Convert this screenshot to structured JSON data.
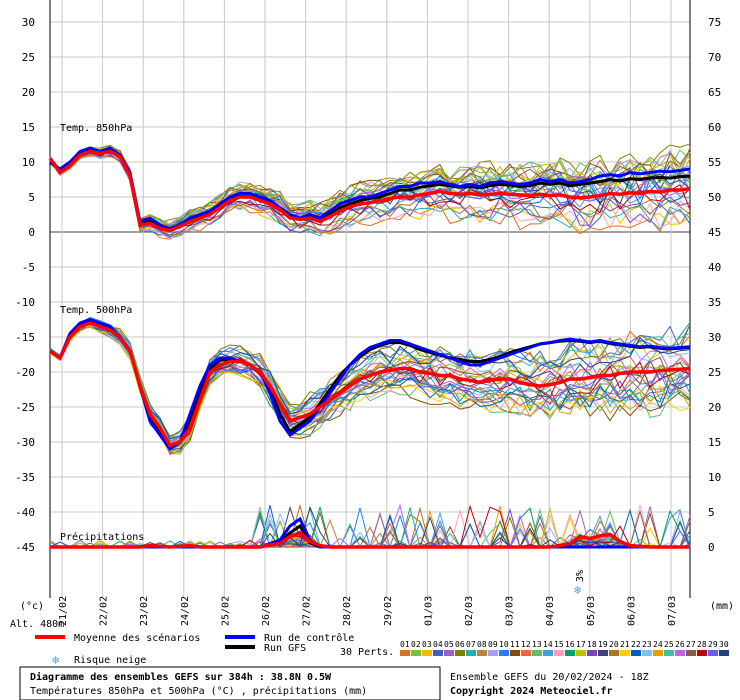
{
  "chart_data": {
    "type": "line",
    "y_left": {
      "min": -50,
      "max": 30,
      "ticks": [
        30,
        25,
        20,
        15,
        10,
        5,
        0,
        -5,
        -10,
        -15,
        -20,
        -25,
        -30,
        -35,
        -40,
        -45
      ],
      "unit": "(°c)"
    },
    "y_right": {
      "ticks": [
        75,
        70,
        65,
        60,
        55,
        50,
        45,
        40,
        35,
        30,
        25,
        20,
        15,
        10,
        5,
        0
      ],
      "unit": "(mm)"
    },
    "x_labels": [
      "21/02",
      "22/02",
      "23/02",
      "24/02",
      "25/02",
      "26/02",
      "27/02",
      "28/02",
      "29/02",
      "01/03",
      "02/03",
      "03/03",
      "04/03",
      "05/03",
      "06/03",
      "07/03"
    ],
    "panel_labels": {
      "t850": "Temp. 850hPa",
      "t500": "Temp. 500hPa",
      "precip": "Précipitations"
    },
    "altitude": "Alt. 480m",
    "snow_risk": {
      "percent": "3%",
      "day_index": 13.3
    },
    "series": [
      {
        "name": "Moyenne des scénarios",
        "color": "#ff0000",
        "t850": [
          10.5,
          8.5,
          9.5,
          11,
          11.5,
          11.2,
          11.5,
          10.8,
          8,
          1,
          1.2,
          0.5,
          0.2,
          0.8,
          1.5,
          2,
          2.5,
          3.5,
          4.5,
          5,
          5,
          4.5,
          4,
          3.2,
          2,
          1.8,
          2,
          1.5,
          2.2,
          3,
          3.6,
          4,
          4.2,
          4.5,
          4.8,
          5,
          5,
          5.3,
          5.5,
          5.8,
          5.5,
          5.4,
          5.5,
          5.3,
          5.4,
          5.5,
          5.4,
          5.3,
          5.2,
          5.4,
          5.2,
          5.3,
          5,
          4.9,
          5,
          5.2,
          5.5,
          5.4,
          5.6,
          5.5,
          5.8,
          5.7,
          6,
          6,
          6.2
        ],
        "t500": [
          -17,
          -18,
          -15,
          -13.5,
          -13,
          -13.5,
          -14,
          -15,
          -17,
          -22,
          -26,
          -28,
          -30.5,
          -30,
          -28,
          -24,
          -20,
          -19,
          -18.5,
          -18.5,
          -19,
          -20,
          -22,
          -24.5,
          -27,
          -26.5,
          -26,
          -25,
          -24,
          -23,
          -22,
          -21,
          -20.5,
          -20,
          -19.8,
          -19.5,
          -19.5,
          -20,
          -20.2,
          -20.5,
          -20.5,
          -21,
          -21.2,
          -21.5,
          -21.2,
          -21,
          -21,
          -21.5,
          -21.8,
          -22,
          -21.8,
          -21.5,
          -21,
          -21,
          -20.8,
          -20.5,
          -20.5,
          -20.2,
          -20,
          -20,
          -20,
          -19.8,
          -19.7,
          -19.6,
          -19.5
        ],
        "precip": [
          0,
          0,
          0,
          0,
          0,
          0,
          0,
          0,
          0,
          0,
          0.2,
          0.1,
          0,
          0.1,
          0.2,
          0,
          0,
          0,
          0,
          0,
          0,
          0,
          0.3,
          0.5,
          1.5,
          2,
          0.8,
          0.2,
          0,
          0,
          0,
          0,
          0,
          0,
          0,
          0,
          0,
          0,
          0,
          0,
          0,
          0,
          0,
          0,
          0,
          0,
          0,
          0,
          0,
          0,
          0,
          0.2,
          0.5,
          1.5,
          1.2,
          1.6,
          1.8,
          0.8,
          0.2,
          0.1,
          0,
          0,
          0,
          0,
          0
        ]
      },
      {
        "name": "Run de contrôle",
        "color": "#0000ff",
        "t850": [
          10,
          9,
          10,
          11.5,
          12,
          11.5,
          12,
          11,
          8.5,
          1.5,
          2,
          1,
          0.5,
          1,
          2,
          2.5,
          3,
          4,
          5,
          5.5,
          5.5,
          5,
          4.5,
          3.5,
          2.5,
          2,
          2.5,
          2,
          3,
          4,
          4.5,
          5,
          5,
          5.5,
          6,
          6.5,
          6.5,
          7,
          7,
          7.2,
          6.8,
          6.5,
          6.8,
          6.5,
          7,
          7.2,
          7,
          6.8,
          7,
          7.5,
          7.2,
          7.5,
          7,
          7.2,
          7.5,
          8,
          8.2,
          8,
          8.5,
          8.3,
          8.5,
          8.7,
          8.6,
          8.8,
          9
        ],
        "t500": [
          -17,
          -18,
          -14.5,
          -13,
          -12.5,
          -13,
          -13.5,
          -15,
          -17,
          -22,
          -27,
          -29,
          -31,
          -30,
          -26,
          -22,
          -19,
          -18,
          -18,
          -18.5,
          -19,
          -20,
          -23,
          -27,
          -29,
          -28,
          -27,
          -25,
          -23,
          -21,
          -19,
          -17.5,
          -16.5,
          -16,
          -15.5,
          -15.5,
          -16,
          -16.5,
          -17,
          -17.5,
          -18,
          -18.5,
          -19,
          -19,
          -18.5,
          -18,
          -17.5,
          -17,
          -16.5,
          -16,
          -15.8,
          -15.5,
          -15.3,
          -15.5,
          -15.7,
          -15.5,
          -15.8,
          -16,
          -16.2,
          -16.4,
          -16.3,
          -16.5,
          -16.6,
          -16.5,
          -16.4
        ],
        "precip": [
          0,
          0,
          0,
          0,
          0,
          0,
          0,
          0,
          0,
          0,
          0,
          0,
          0,
          0,
          0,
          0,
          0,
          0,
          0,
          0,
          0,
          0,
          0.5,
          1,
          3,
          4,
          1,
          0,
          0,
          0,
          0,
          0,
          0,
          0,
          0,
          0,
          0,
          0,
          0,
          0,
          0,
          0,
          0,
          0,
          0,
          0,
          0,
          0,
          0,
          0,
          0,
          0,
          0,
          0,
          0,
          0,
          0,
          0,
          0,
          0,
          0,
          0,
          0,
          0,
          0
        ]
      },
      {
        "name": "Run GFS",
        "color": "#000000",
        "t850": [
          10,
          8.8,
          9.8,
          11.2,
          11.8,
          11.4,
          11.8,
          11,
          8.2,
          1.2,
          1.6,
          0.8,
          0.4,
          0.9,
          1.8,
          2.2,
          2.8,
          3.8,
          4.8,
          5.2,
          5.2,
          4.8,
          4.2,
          3.4,
          2.2,
          1.9,
          2.2,
          1.8,
          2.6,
          3.5,
          4,
          4.5,
          4.8,
          5,
          5.5,
          6,
          6,
          6.4,
          6.6,
          6.8,
          6.6,
          6.4,
          6.5,
          6.3,
          6.6,
          6.8,
          6.7,
          6.5,
          6.6,
          7,
          6.8,
          7,
          6.6,
          6.8,
          7,
          7.2,
          7.5,
          7.3,
          7.6,
          7.5,
          7.7,
          7.8,
          7.7,
          7.9,
          8
        ],
        "t500": [
          -17,
          -18,
          -14.8,
          -13.2,
          -12.8,
          -13.2,
          -13.8,
          -15,
          -17,
          -22,
          -26.5,
          -28.5,
          -30.8,
          -30,
          -27,
          -23,
          -19.5,
          -18.3,
          -18.2,
          -18.5,
          -19,
          -20,
          -22.5,
          -26,
          -28.5,
          -27.5,
          -26.5,
          -24.5,
          -22.5,
          -20.5,
          -19,
          -17.8,
          -16.8,
          -16.2,
          -15.8,
          -15.8,
          -16.2,
          -16.8,
          -17.2,
          -17.6,
          -18,
          -18.2,
          -18.5,
          -18.5,
          -18.2,
          -17.8,
          -17.2,
          -16.8,
          -16.4,
          -16,
          -15.8,
          -15.6,
          -15.5,
          -15.6,
          -15.8,
          -15.6,
          -15.9,
          -16.1,
          -16.3,
          -16.5,
          -16.4,
          -16.6,
          -16.7,
          -16.6,
          -16.5
        ],
        "precip": [
          0,
          0,
          0,
          0,
          0,
          0,
          0,
          0,
          0,
          0,
          0,
          0,
          0,
          0,
          0,
          0,
          0,
          0,
          0,
          0,
          0,
          0,
          0.3,
          0.8,
          2,
          3,
          0.6,
          0,
          0,
          0,
          0,
          0,
          0,
          0,
          0,
          0,
          0,
          0,
          0,
          0,
          0,
          0,
          0,
          0,
          0,
          0,
          0,
          0,
          0,
          0,
          0,
          0,
          0,
          0,
          0,
          0,
          0,
          0,
          0,
          0,
          0,
          0,
          0,
          0,
          0
        ]
      }
    ],
    "perturbations": {
      "count": 30,
      "labels": [
        "01",
        "02",
        "03",
        "04",
        "05",
        "06",
        "07",
        "08",
        "09",
        "10",
        "11",
        "12",
        "13",
        "14",
        "15",
        "16",
        "17",
        "18",
        "19",
        "20",
        "21",
        "22",
        "23",
        "24",
        "25",
        "26",
        "27",
        "28",
        "29",
        "30"
      ],
      "colors": [
        "#e07020",
        "#7cc040",
        "#f0c000",
        "#4060c0",
        "#a060c0",
        "#808000",
        "#20b0b0",
        "#c08040",
        "#a0a0ff",
        "#2080ff",
        "#805000",
        "#ff6040",
        "#60c060",
        "#40a0e0",
        "#ffa0c0",
        "#00a060",
        "#c0c000",
        "#8040c0",
        "#404080",
        "#b07030",
        "#ffd000",
        "#0060c0",
        "#80c0ff",
        "#e0a000",
        "#40c0a0",
        "#c060ff",
        "#806040",
        "#c00000",
        "#6060ff",
        "#204080"
      ]
    }
  },
  "legend": {
    "mean": "Moyenne des scénarios",
    "control": "Run de contrôle",
    "gfs": "Run GFS",
    "snow": "Risque neige",
    "perts": "30 Perts."
  },
  "footer": {
    "title": "Diagramme des ensembles GEFS sur 384h : 38.8N 0.5W",
    "subtitle": "Températures 850hPa et 500hPa (°C) , précipitations (mm)",
    "run": "Ensemble GEFS du 20/02/2024 - 18Z",
    "copyright": "Copyright 2024 Meteociel.fr"
  },
  "colors": {
    "grid": "#c8c8c8",
    "zero_line": "#808080",
    "mean": "#ff0000",
    "control": "#0000ff",
    "gfs": "#000000",
    "snow": "#4aa8e8"
  }
}
